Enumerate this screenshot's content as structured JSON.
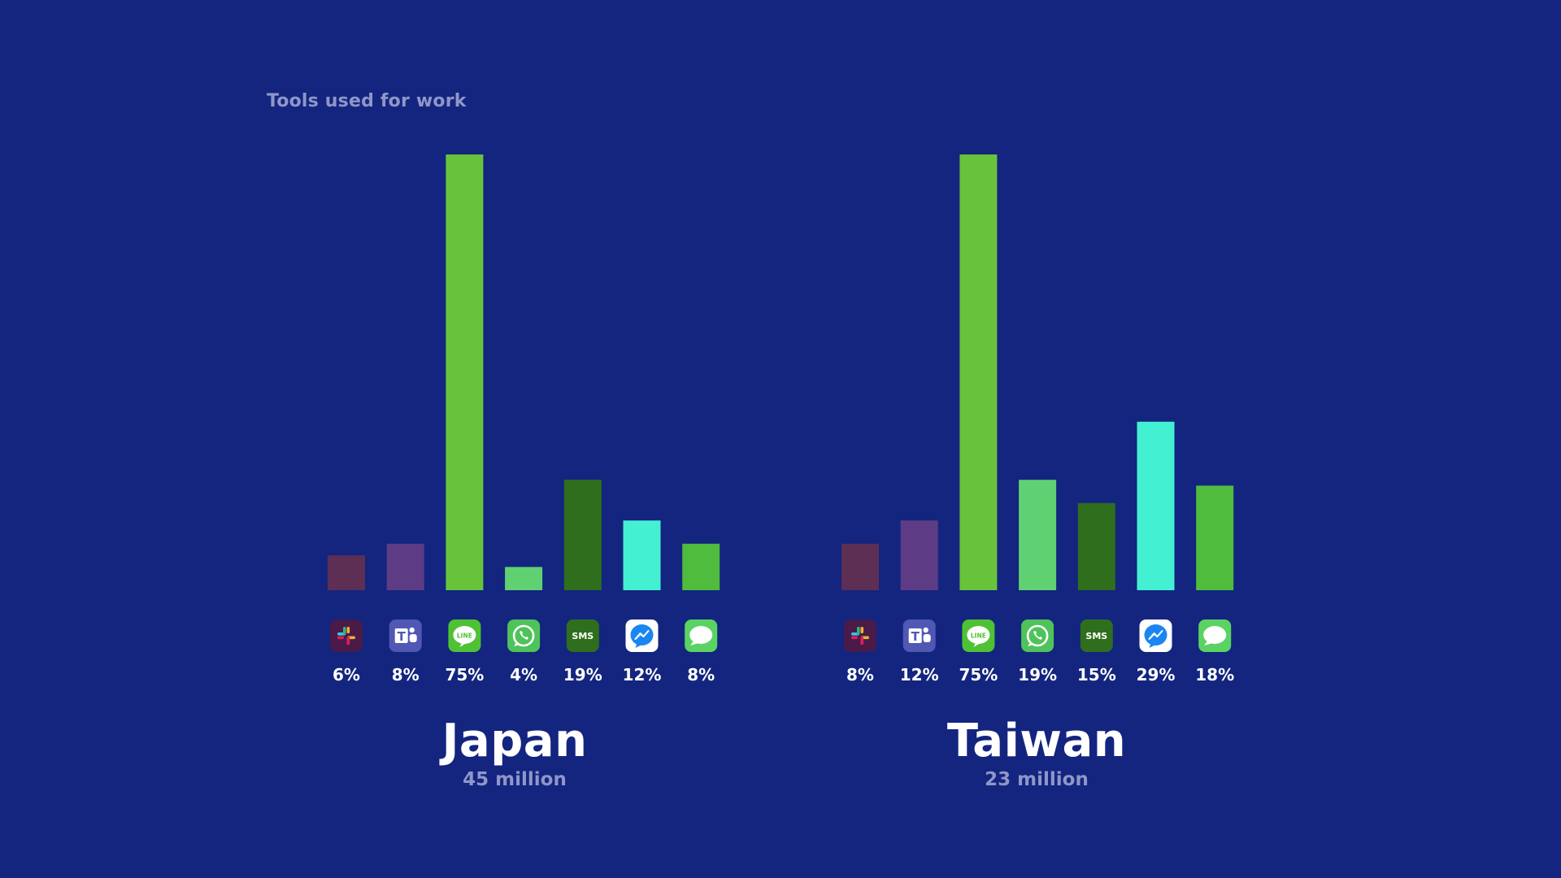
{
  "title": "Tools used for work",
  "colors": {
    "background": "#13257f",
    "slack": "#5e2f54",
    "teams": "#5e3c85",
    "line": "#68c33a",
    "whatsapp": "#60d172",
    "sms": "#2f6e1c",
    "messenger": "#44f0d2",
    "imessage": "#4fbc3e"
  },
  "tools": [
    {
      "key": "slack",
      "icon": "slack-icon"
    },
    {
      "key": "teams",
      "icon": "teams-icon"
    },
    {
      "key": "line",
      "icon": "line-icon",
      "icon_text": "LINE"
    },
    {
      "key": "whatsapp",
      "icon": "whatsapp-icon"
    },
    {
      "key": "sms",
      "icon": "sms-icon",
      "icon_text": "SMS"
    },
    {
      "key": "messenger",
      "icon": "messenger-icon"
    },
    {
      "key": "imessage",
      "icon": "imessage-icon"
    }
  ],
  "chart_data": [
    {
      "type": "bar",
      "title": "Tools used for work",
      "country": "Japan",
      "population": "45 million",
      "categories": [
        "Slack",
        "Microsoft Teams",
        "LINE",
        "WhatsApp",
        "SMS",
        "Messenger",
        "iMessage"
      ],
      "values": [
        6,
        8,
        75,
        4,
        19,
        12,
        8
      ],
      "labels": [
        "6%",
        "8%",
        "75%",
        "4%",
        "19%",
        "12%",
        "8%"
      ],
      "ylim": [
        0,
        75
      ]
    },
    {
      "type": "bar",
      "title": "Tools used for work",
      "country": "Taiwan",
      "population": "23 million",
      "categories": [
        "Slack",
        "Microsoft Teams",
        "LINE",
        "WhatsApp",
        "SMS",
        "Messenger",
        "iMessage"
      ],
      "values": [
        8,
        12,
        75,
        19,
        15,
        29,
        18
      ],
      "labels": [
        "8%",
        "12%",
        "75%",
        "19%",
        "15%",
        "29%",
        "18%"
      ],
      "ylim": [
        0,
        75
      ]
    }
  ],
  "japan": {
    "name": "Japan",
    "population": "45 million"
  },
  "taiwan": {
    "name": "Taiwan",
    "population": "23 million"
  }
}
